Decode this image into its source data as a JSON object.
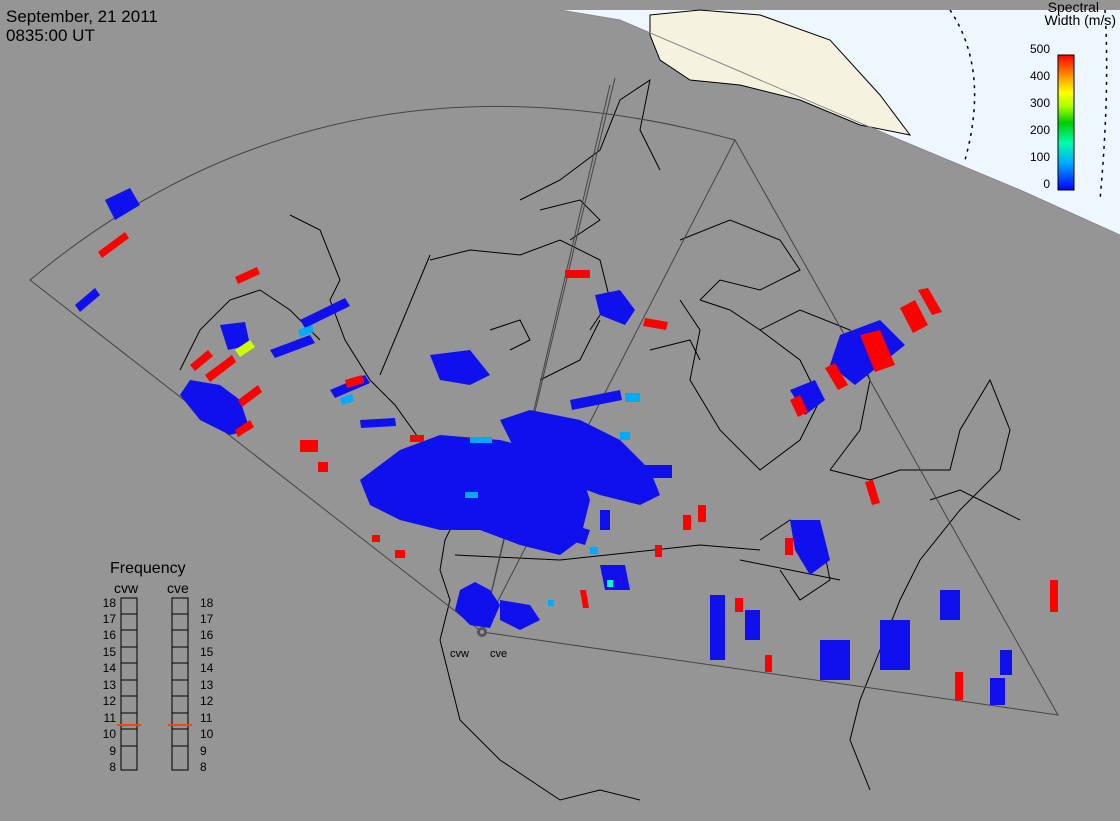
{
  "header": {
    "date": "September, 21 2011",
    "time": "0835:00 UT"
  },
  "legend": {
    "title_line1": "Spectral",
    "title_line2": "Width (m/s)",
    "ticks": [
      "500",
      "400",
      "300",
      "200",
      "100",
      "0"
    ],
    "colors": [
      "#0000ff",
      "#00aaff",
      "#00ffaa",
      "#00cc00",
      "#aaff00",
      "#ffff00",
      "#ffaa00",
      "#ff5500",
      "#ff0000"
    ]
  },
  "frequency": {
    "title": "Frequency",
    "radars": [
      "cvw",
      "cve"
    ],
    "scale": [
      "18",
      "17",
      "16",
      "15",
      "14",
      "13",
      "12",
      "11",
      "10",
      "9",
      "8"
    ],
    "markers_mhz": {
      "cvw": 10.6,
      "cve": 10.6
    },
    "marker_color": "#ff4400"
  },
  "sites": {
    "west": "cvw",
    "east": "cve"
  },
  "colors": {
    "background": "#959595",
    "ocean_polar": "#eef6ff",
    "land_polar": "#f5f3df",
    "blue": "#1010ee",
    "red": "#ff0000",
    "cyan": "#00aaff"
  }
}
